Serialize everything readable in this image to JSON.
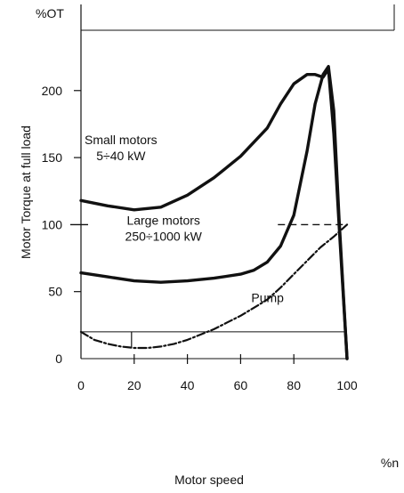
{
  "chart_data": {
    "type": "line",
    "title": "",
    "ylabel_top": "%OT",
    "ylabel": "Motor Torque at full load",
    "xlabel": "Motor speed",
    "xunit": "%n",
    "xlim": [
      0,
      100
    ],
    "ylim": [
      0,
      245
    ],
    "xticks": [
      "0",
      "20",
      "40",
      "60",
      "80",
      "100"
    ],
    "yticks": [
      "0",
      "50",
      "100",
      "150",
      "200"
    ],
    "xtick_values": [
      0,
      20,
      40,
      60,
      80,
      100
    ],
    "ytick_values": [
      0,
      50,
      100,
      150,
      200
    ],
    "reference_lines": [
      {
        "y": 100,
        "x_from": 0,
        "x_to": 100,
        "style": "dashed"
      },
      {
        "y": 20,
        "x_from": 0,
        "x_to": 100,
        "style": "solid"
      }
    ],
    "series": [
      {
        "name": "Small motors\n5÷40 kW",
        "label_lines": [
          "Small motors",
          "5÷40 kW"
        ],
        "label_anchor": [
          15,
          160
        ],
        "x": [
          0,
          10,
          20,
          30,
          40,
          50,
          60,
          70,
          75,
          80,
          85,
          88,
          91,
          93,
          95,
          97,
          98.5,
          100
        ],
        "y": [
          118,
          114,
          111,
          113,
          122,
          135,
          151,
          172,
          190,
          205,
          212,
          212,
          210,
          216,
          168,
          100,
          50,
          0
        ]
      },
      {
        "name": "Large motors\n250÷1000 kW",
        "label_lines": [
          "Large motors",
          "250÷1000 kW"
        ],
        "label_anchor": [
          31,
          100
        ],
        "x": [
          0,
          10,
          20,
          30,
          40,
          50,
          60,
          65,
          70,
          75,
          80,
          85,
          88,
          91,
          93,
          95,
          97,
          100
        ],
        "y": [
          64,
          61,
          58,
          57,
          58,
          60,
          63,
          66,
          72,
          84,
          107,
          155,
          190,
          212,
          218,
          185,
          105,
          0
        ]
      },
      {
        "name": "Pump",
        "label_lines": [
          "Pump"
        ],
        "label_anchor": [
          64,
          42
        ],
        "x": [
          0,
          5,
          10,
          15,
          20,
          25,
          30,
          35,
          40,
          45,
          50,
          55,
          60,
          65,
          70,
          75,
          80,
          85,
          90,
          95,
          100
        ],
        "y": [
          20,
          14,
          11,
          9,
          8,
          8,
          9,
          11,
          14,
          18,
          22,
          27,
          32,
          38,
          44,
          53,
          63,
          73,
          83,
          91,
          100
        ]
      }
    ]
  }
}
